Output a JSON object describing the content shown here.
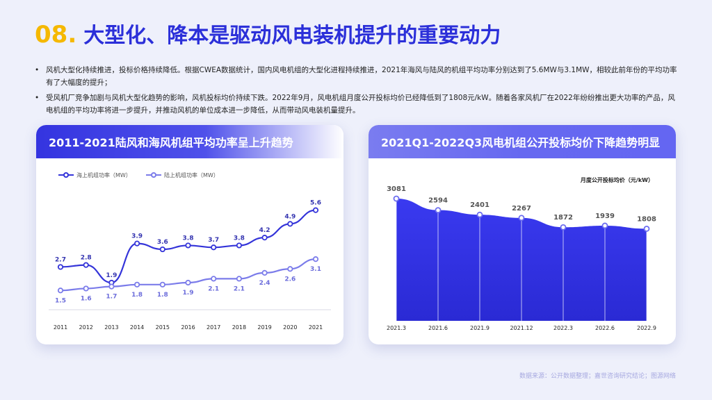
{
  "header": {
    "number": "08.",
    "title": "大型化、降本是驱动风电装机提升的重要动力"
  },
  "bullets": [
    "风机大型化持续推进，投标价格持续降低。根据CWEA数据统计，国内风电机组的大型化进程持续推进，2021年海风与陆风的机组平均功率分别达到了5.6MW与3.1MW，相较此前年份的平均功率有了大幅度的提升；",
    "受风机厂竞争加剧与风机大型化趋势的影响，风机投标均价持续下跌。2022年9月，风电机组月度公开投标均价已经降低到了1808元/kW。随着各家风机厂在2022年纷纷推出更大功率的产品，风电机组的平均功率将进一步提升，并推动风机的单位成本进一步降低，从而带动风电装机量提升。"
  ],
  "source": "数据来源：公开数据整理；嘉世咨询研究结论；图源网络",
  "colors": {
    "offshore": "#3434d9",
    "onshore": "#7b7cea",
    "area": "#3a3ae8",
    "accent": "#f5b800"
  },
  "chart_data": [
    {
      "type": "line",
      "title": "2011-2021陆风和海风机组平均功率呈上升趋势",
      "x": [
        "2011",
        "2012",
        "2013",
        "2014",
        "2015",
        "2016",
        "2017",
        "2018",
        "2019",
        "2020",
        "2021"
      ],
      "series": [
        {
          "name": "海上机组功率（MW）",
          "values": [
            2.7,
            2.8,
            1.9,
            3.9,
            3.6,
            3.8,
            3.7,
            3.8,
            4.2,
            4.9,
            5.6
          ]
        },
        {
          "name": "陆上机组功率（MW）",
          "values": [
            1.5,
            1.6,
            1.7,
            1.8,
            1.8,
            1.9,
            2.1,
            2.1,
            2.4,
            2.6,
            3.1
          ]
        }
      ],
      "legend": "top-left",
      "grid": false
    },
    {
      "type": "area",
      "title": "2021Q1-2022Q3风电机组公开投标均价下降趋势明显",
      "x": [
        "2021.3",
        "2021.6",
        "2021.9",
        "2021.12",
        "2022.3",
        "2022.6",
        "2022.9"
      ],
      "series": [
        {
          "name": "月度公开投标均价（元/kW）",
          "values": [
            3081,
            2594,
            2401,
            2267,
            1872,
            1939,
            1808
          ]
        }
      ],
      "legend": "top-right",
      "grid": false
    }
  ]
}
